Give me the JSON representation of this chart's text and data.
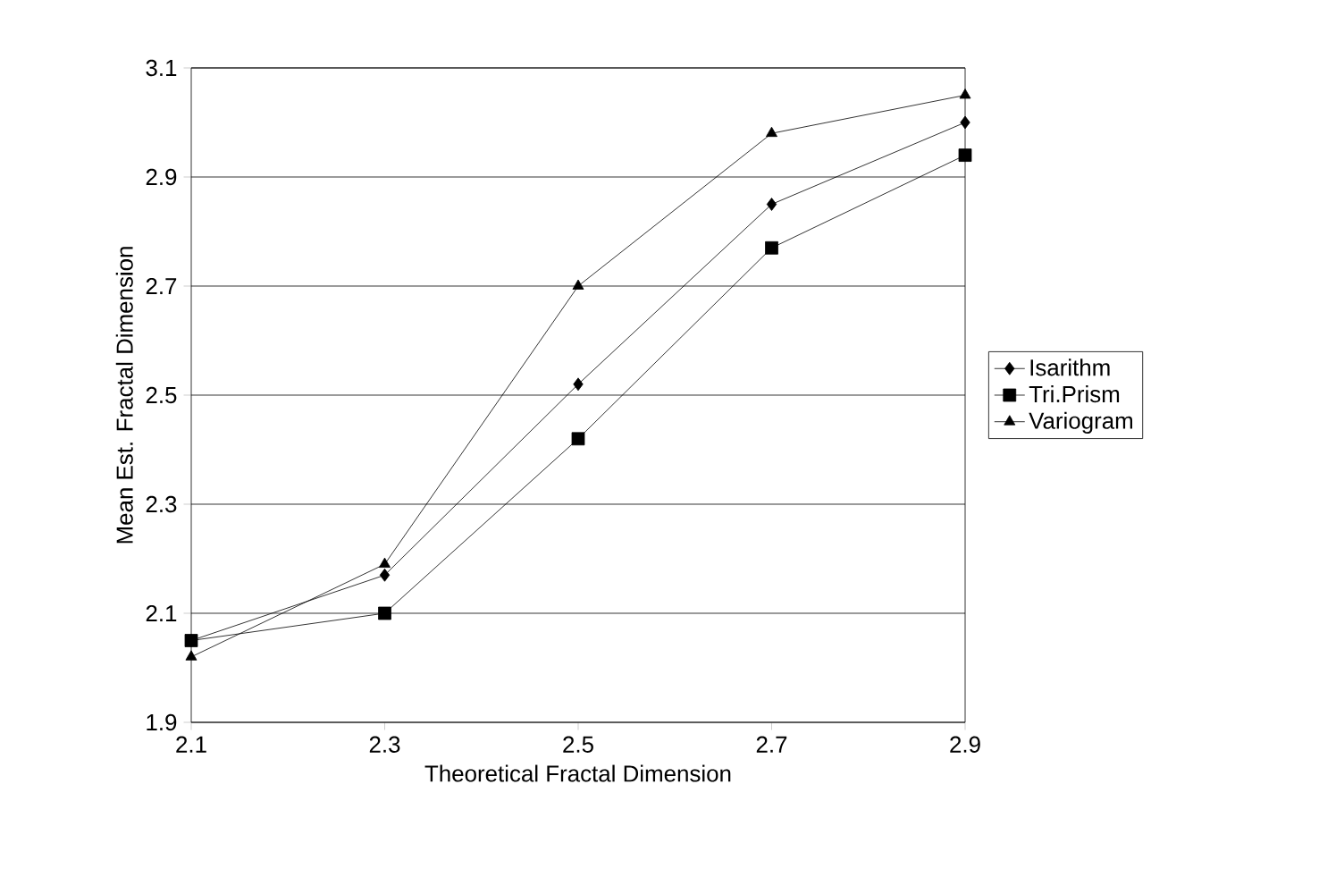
{
  "chart_data": {
    "type": "line",
    "xlabel": "Theoretical Fractal Dimension",
    "ylabel": "Mean Est. Fractal Dimension",
    "x": [
      2.1,
      2.3,
      2.5,
      2.7,
      2.9
    ],
    "series": [
      {
        "name": "Isarithm",
        "color": "#000000",
        "marker": "diamond",
        "values": [
          2.05,
          2.17,
          2.52,
          2.85,
          3.0
        ]
      },
      {
        "name": "Tri.Prism",
        "color": "#000000",
        "marker": "square",
        "values": [
          2.05,
          2.1,
          2.42,
          2.77,
          2.94
        ]
      },
      {
        "name": "Variogram",
        "color": "#000000",
        "marker": "triangle",
        "values": [
          2.02,
          2.19,
          2.7,
          2.98,
          3.05
        ]
      }
    ],
    "xlim": [
      2.1,
      2.9
    ],
    "xticks": [
      2.1,
      2.3,
      2.5,
      2.7,
      2.9
    ],
    "ylim": [
      1.9,
      3.1
    ],
    "yticks": [
      1.9,
      2.1,
      2.3,
      2.5,
      2.7,
      2.9,
      3.1
    ],
    "grid": "y",
    "legend": "right",
    "line_style": "solid"
  }
}
